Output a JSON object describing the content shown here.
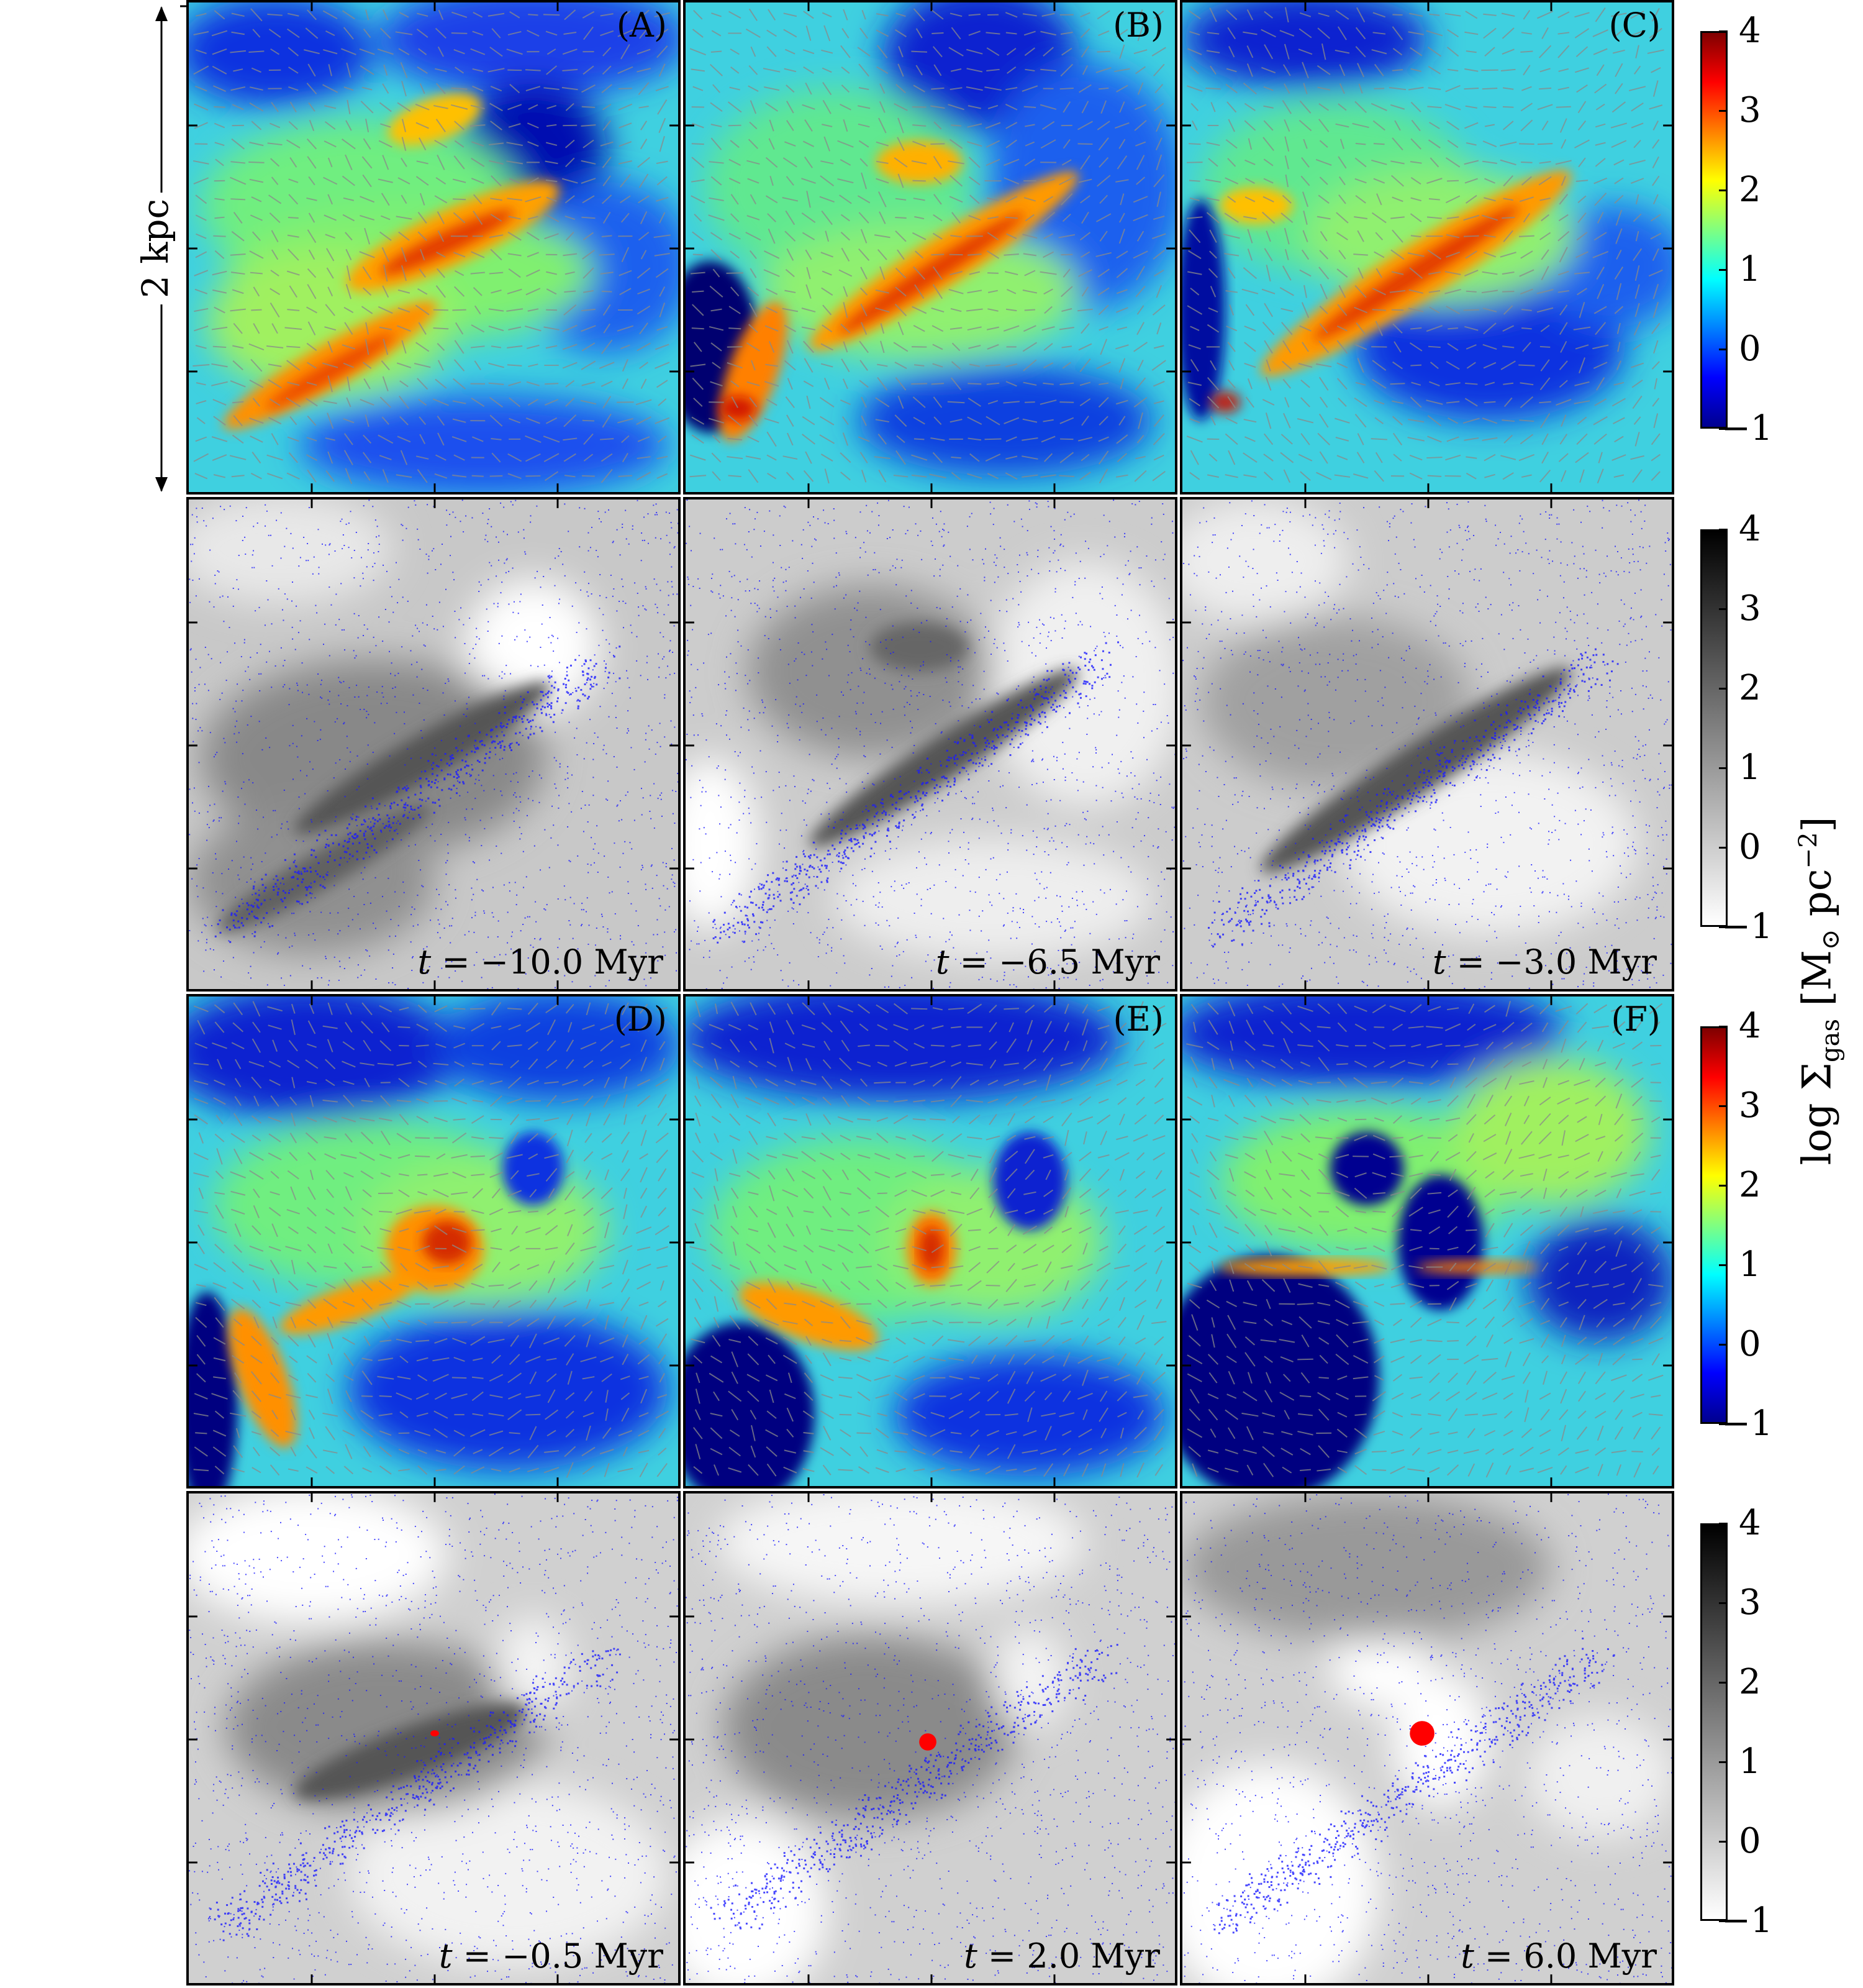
{
  "scale": {
    "label": "2 kpc"
  },
  "colorbar": {
    "ticks": [
      "4",
      "3",
      "2",
      "1",
      "0",
      "−1"
    ],
    "jet_colors": [
      "#7f0000",
      "#ff0000",
      "#ff8000",
      "#ffff00",
      "#80ff80",
      "#00ffff",
      "#0080ff",
      "#0000ff",
      "#00008f"
    ],
    "gray_colors": [
      "#000000",
      "#404040",
      "#808080",
      "#c0c0c0",
      "#ffffff"
    ]
  },
  "axis": {
    "title_prefix": "log Σ",
    "title_sub": "gas",
    "title_mid": " [M",
    "title_sun": "⊙",
    "title_unit": " pc",
    "title_exp": "−2",
    "title_end": "]"
  },
  "panels": {
    "A": {
      "label": "(A)"
    },
    "B": {
      "label": "(B)"
    },
    "C": {
      "label": "(C)"
    },
    "D": {
      "label": "(D)"
    },
    "E": {
      "label": "(E)"
    },
    "F": {
      "label": "(F)"
    }
  },
  "times": {
    "t1": {
      "var": "t",
      "rest": " = −10.0 Myr"
    },
    "t2": {
      "var": "t",
      "rest": " = −6.5 Myr"
    },
    "t3": {
      "var": "t",
      "rest": " = −3.0 Myr"
    },
    "t4": {
      "var": "t",
      "rest": " = −0.5 Myr"
    },
    "t5": {
      "var": "t",
      "rest": " = 2.0 Myr"
    },
    "t6": {
      "var": "t",
      "rest": " = 6.0 Myr"
    }
  }
}
